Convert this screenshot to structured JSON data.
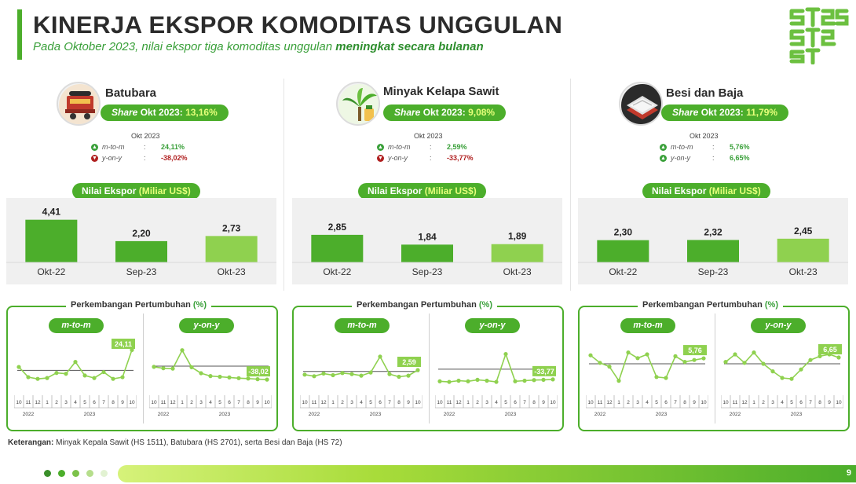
{
  "title": "KINERJA EKSPOR KOMODITAS UNGGULAN",
  "subtitle_prefix": "Pada Oktober 2023, nilai ekspor tiga komoditas unggulan ",
  "subtitle_emphasis": "meningkat secara bulanan",
  "logo_text": "ST2023",
  "colors": {
    "accent": "#4cae2b",
    "accent_light": "#8fd14f",
    "bar_dark": "#4cae2b",
    "bar_light": "#8fd14f",
    "negative": "#b02020",
    "highlight_text": "#e6ff7a"
  },
  "labels": {
    "share_prefix_italic": "Share",
    "share_prefix_rest": " Okt 2023: ",
    "period_label": "Okt 2023",
    "mtm_label": "m-to-m",
    "yoy_label": "y-on-y",
    "colon": ":",
    "nilai_prefix": "Nilai Ekspor ",
    "nilai_unit": "(Miliar US$)",
    "growth_prefix": "Perkembangan Pertumbuhan ",
    "growth_unit": "(%)",
    "sub_mtm": "m-to-m",
    "sub_yoy": "y-on-y",
    "x_months": [
      "10",
      "11",
      "12",
      "1",
      "2",
      "3",
      "4",
      "5",
      "6",
      "7",
      "8",
      "9",
      "10"
    ],
    "x_year_2022": "2022",
    "x_year_2023": "2023"
  },
  "commodities": [
    {
      "name": "Batubara",
      "icon": "coal-cart-icon",
      "share": "13,16%",
      "mtm": "24,11%",
      "mtm_dir": "up",
      "yoy": "-38,02%",
      "yoy_dir": "down",
      "last_mtm_label": "24,11",
      "last_yoy_label": "-38,02"
    },
    {
      "name": "Minyak Kelapa Sawit",
      "icon": "palm-oil-icon",
      "share": "9,08%",
      "mtm": "2,59%",
      "mtm_dir": "up",
      "yoy": "-33,77%",
      "yoy_dir": "down",
      "last_mtm_label": "2,59",
      "last_yoy_label": "-33,77"
    },
    {
      "name": "Besi dan Baja",
      "icon": "steel-coil-icon",
      "share": "11,79%",
      "mtm": "5,76%",
      "mtm_dir": "up",
      "yoy": "6,65%",
      "yoy_dir": "up",
      "last_mtm_label": "5,76",
      "last_yoy_label": "6,65"
    }
  ],
  "chart_data": [
    {
      "type": "bar",
      "title": "Nilai Ekspor (Miliar US$)",
      "commodity": "Batubara",
      "categories": [
        "Okt-22",
        "Sep-23",
        "Okt-23"
      ],
      "values": [
        4.41,
        2.2,
        2.73
      ],
      "value_labels": [
        "4,41",
        "2,20",
        "2,73"
      ],
      "ylim": [
        0,
        5
      ]
    },
    {
      "type": "bar",
      "title": "Nilai Ekspor (Miliar US$)",
      "commodity": "Minyak Kelapa Sawit",
      "categories": [
        "Okt-22",
        "Sep-23",
        "Okt-23"
      ],
      "values": [
        2.85,
        1.84,
        1.89
      ],
      "value_labels": [
        "2,85",
        "1,84",
        "1,89"
      ],
      "ylim": [
        0,
        5
      ]
    },
    {
      "type": "bar",
      "title": "Nilai Ekspor (Miliar US$)",
      "commodity": "Besi dan Baja",
      "categories": [
        "Okt-22",
        "Sep-23",
        "Okt-23"
      ],
      "values": [
        2.3,
        2.32,
        2.45
      ],
      "value_labels": [
        "2,30",
        "2,32",
        "2,45"
      ],
      "ylim": [
        0,
        5
      ]
    },
    {
      "type": "line",
      "title": "Perkembangan Pertumbuhan (%)",
      "commodity": "Batubara",
      "series_label": "m-to-m",
      "x": [
        "10",
        "11",
        "12",
        "1",
        "2",
        "3",
        "4",
        "5",
        "6",
        "7",
        "8",
        "9",
        "10"
      ],
      "values": [
        4,
        -8,
        -10,
        -9,
        -3,
        -4,
        10,
        -6,
        -9,
        -2,
        -10,
        -8,
        24.11
      ],
      "ylim": [
        -20,
        30
      ]
    },
    {
      "type": "line",
      "title": "Perkembangan Pertumbuhan (%)",
      "commodity": "Batubara",
      "series_label": "y-on-y",
      "x": [
        "10",
        "11",
        "12",
        "1",
        "2",
        "3",
        "4",
        "5",
        "6",
        "7",
        "8",
        "9",
        "10"
      ],
      "values": [
        -2,
        -6,
        -7,
        45,
        -3,
        -20,
        -28,
        -30,
        -32,
        -34,
        -35,
        -37,
        -38.02
      ],
      "ylim": [
        -60,
        60
      ]
    },
    {
      "type": "line",
      "title": "Perkembangan Pertumbuhan (%)",
      "commodity": "Minyak Kelapa Sawit",
      "series_label": "m-to-m",
      "x": [
        "10",
        "11",
        "12",
        "1",
        "2",
        "3",
        "4",
        "5",
        "6",
        "7",
        "8",
        "9",
        "10"
      ],
      "values": [
        -6,
        -9,
        -4,
        -7,
        -3,
        -5,
        -8,
        -2,
        28,
        -5,
        -10,
        -8,
        2.59
      ],
      "ylim": [
        -30,
        50
      ]
    },
    {
      "type": "line",
      "title": "Perkembangan Pertumbuhan (%)",
      "commodity": "Minyak Kelapa Sawit",
      "series_label": "y-on-y",
      "x": [
        "10",
        "11",
        "12",
        "1",
        "2",
        "3",
        "4",
        "5",
        "6",
        "7",
        "8",
        "9",
        "10"
      ],
      "values": [
        -40,
        -42,
        -38,
        -40,
        -35,
        -38,
        -42,
        50,
        -40,
        -38,
        -36,
        -35,
        -33.77
      ],
      "ylim": [
        -60,
        80
      ]
    },
    {
      "type": "line",
      "title": "Perkembangan Pertumbuhan (%)",
      "commodity": "Besi dan Baja",
      "series_label": "m-to-m",
      "x": [
        "10",
        "11",
        "12",
        "1",
        "2",
        "3",
        "4",
        "5",
        "6",
        "7",
        "8",
        "9",
        "10"
      ],
      "values": [
        9,
        1,
        -3,
        -18,
        12,
        6,
        10,
        -14,
        -15,
        8,
        2,
        4,
        5.76
      ],
      "ylim": [
        -25,
        20
      ]
    },
    {
      "type": "line",
      "title": "Perkembangan Pertumbuhan (%)",
      "commodity": "Besi dan Baja",
      "series_label": "y-on-y",
      "x": [
        "10",
        "11",
        "12",
        "1",
        "2",
        "3",
        "4",
        "5",
        "6",
        "7",
        "8",
        "9",
        "10"
      ],
      "values": [
        2,
        10,
        1,
        12,
        0,
        -8,
        -15,
        -16,
        -6,
        4,
        8,
        10,
        6.65
      ],
      "ylim": [
        -25,
        20
      ]
    }
  ],
  "footnote_label": "Keterangan:",
  "footnote_text": " Minyak Kepala Sawit (HS 1511), Batubara (HS 2701), serta Besi dan Baja (HS 72)",
  "pager_dots": 5,
  "page_number": "9"
}
